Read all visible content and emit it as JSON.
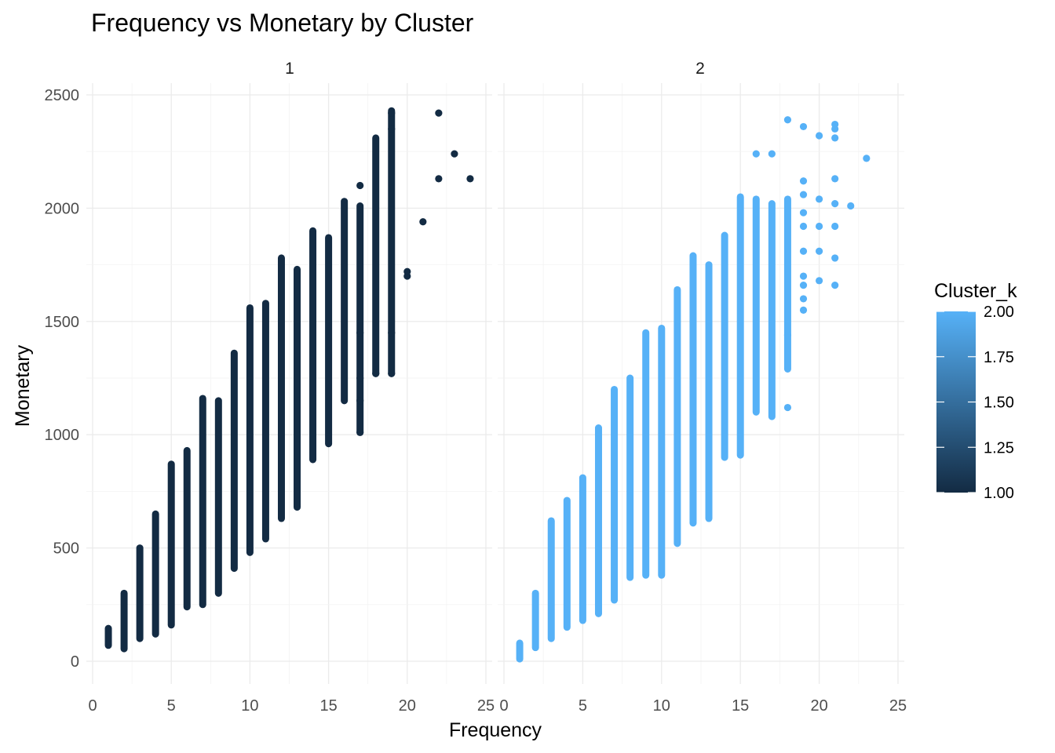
{
  "chart_data": {
    "type": "scatter",
    "title": "Frequency vs Monetary by Cluster",
    "xlabel": "Frequency",
    "ylabel": "Monetary",
    "xlim": [
      0,
      25
    ],
    "ylim": [
      0,
      2500
    ],
    "x_ticks": [
      0,
      5,
      10,
      15,
      20,
      25
    ],
    "y_ticks": [
      0,
      500,
      1000,
      1500,
      2000,
      2500
    ],
    "grid": true,
    "facet_by": "cluster",
    "legend": {
      "title": "Cluster_k",
      "type": "colorbar",
      "placement": "right",
      "range": [
        1.0,
        2.0
      ],
      "ticks": [
        "1.00",
        "1.25",
        "1.50",
        "1.75",
        "2.00"
      ],
      "low_color": "#132B43",
      "high_color": "#56B1F7"
    },
    "panels": [
      {
        "label": "1",
        "color": "#132B43",
        "columns": [
          {
            "x": 1,
            "min": 70,
            "max": 145
          },
          {
            "x": 2,
            "min": 55,
            "max": 300
          },
          {
            "x": 3,
            "min": 100,
            "max": 500
          },
          {
            "x": 4,
            "min": 120,
            "max": 650
          },
          {
            "x": 5,
            "min": 160,
            "max": 870
          },
          {
            "x": 6,
            "min": 240,
            "max": 930
          },
          {
            "x": 7,
            "min": 250,
            "max": 1160
          },
          {
            "x": 8,
            "min": 300,
            "max": 1150
          },
          {
            "x": 9,
            "min": 410,
            "max": 1360
          },
          {
            "x": 10,
            "min": 480,
            "max": 1560
          },
          {
            "x": 11,
            "min": 540,
            "max": 1580
          },
          {
            "x": 12,
            "min": 630,
            "max": 1780
          },
          {
            "x": 13,
            "min": 680,
            "max": 1730
          },
          {
            "x": 14,
            "min": 890,
            "max": 1900
          },
          {
            "x": 15,
            "min": 960,
            "max": 1870
          },
          {
            "x": 16,
            "min": 1150,
            "max": 2030
          },
          {
            "x": 17,
            "min": 1010,
            "max": 2010
          },
          {
            "x": 18,
            "min": 1270,
            "max": 2310
          },
          {
            "x": 19,
            "min": 1270,
            "max": 2430
          }
        ],
        "points": [
          {
            "x": 17,
            "y": 2100
          },
          {
            "x": 17,
            "y": 1450
          },
          {
            "x": 17,
            "y": 1250
          },
          {
            "x": 17,
            "y": 1150
          },
          {
            "x": 17,
            "y": 1010
          },
          {
            "x": 18,
            "y": 1270
          },
          {
            "x": 19,
            "y": 1270
          },
          {
            "x": 19,
            "y": 1450
          },
          {
            "x": 19,
            "y": 2350
          },
          {
            "x": 19,
            "y": 2420
          },
          {
            "x": 20,
            "y": 1700
          },
          {
            "x": 20,
            "y": 1720
          },
          {
            "x": 21,
            "y": 1940
          },
          {
            "x": 22,
            "y": 2420
          },
          {
            "x": 22,
            "y": 2130
          },
          {
            "x": 23,
            "y": 2240
          },
          {
            "x": 24,
            "y": 2130
          }
        ]
      },
      {
        "label": "2",
        "color": "#56B1F7",
        "columns": [
          {
            "x": 1,
            "min": 10,
            "max": 80
          },
          {
            "x": 2,
            "min": 60,
            "max": 300
          },
          {
            "x": 3,
            "min": 100,
            "max": 620
          },
          {
            "x": 4,
            "min": 150,
            "max": 710
          },
          {
            "x": 5,
            "min": 180,
            "max": 810
          },
          {
            "x": 6,
            "min": 210,
            "max": 1030
          },
          {
            "x": 7,
            "min": 270,
            "max": 1200
          },
          {
            "x": 8,
            "min": 370,
            "max": 1250
          },
          {
            "x": 9,
            "min": 380,
            "max": 1450
          },
          {
            "x": 10,
            "min": 380,
            "max": 1470
          },
          {
            "x": 11,
            "min": 520,
            "max": 1640
          },
          {
            "x": 12,
            "min": 610,
            "max": 1790
          },
          {
            "x": 13,
            "min": 630,
            "max": 1750
          },
          {
            "x": 14,
            "min": 900,
            "max": 1880
          },
          {
            "x": 15,
            "min": 910,
            "max": 2050
          },
          {
            "x": 16,
            "min": 1100,
            "max": 2040
          },
          {
            "x": 17,
            "min": 1080,
            "max": 2020
          },
          {
            "x": 18,
            "min": 1290,
            "max": 2040
          }
        ],
        "points": [
          {
            "x": 16,
            "y": 2240
          },
          {
            "x": 17,
            "y": 2240
          },
          {
            "x": 18,
            "y": 2390
          },
          {
            "x": 18,
            "y": 1120
          },
          {
            "x": 18,
            "y": 1440
          },
          {
            "x": 19,
            "y": 2360
          },
          {
            "x": 19,
            "y": 2120
          },
          {
            "x": 19,
            "y": 2060
          },
          {
            "x": 19,
            "y": 1980
          },
          {
            "x": 19,
            "y": 1920
          },
          {
            "x": 19,
            "y": 1810
          },
          {
            "x": 19,
            "y": 1700
          },
          {
            "x": 19,
            "y": 1660
          },
          {
            "x": 19,
            "y": 1600
          },
          {
            "x": 19,
            "y": 1550
          },
          {
            "x": 20,
            "y": 2320
          },
          {
            "x": 20,
            "y": 2040
          },
          {
            "x": 20,
            "y": 1920
          },
          {
            "x": 20,
            "y": 1810
          },
          {
            "x": 20,
            "y": 1680
          },
          {
            "x": 21,
            "y": 2370
          },
          {
            "x": 21,
            "y": 2350
          },
          {
            "x": 21,
            "y": 2310
          },
          {
            "x": 21,
            "y": 2130
          },
          {
            "x": 21,
            "y": 2020
          },
          {
            "x": 21,
            "y": 1920
          },
          {
            "x": 21,
            "y": 1780
          },
          {
            "x": 21,
            "y": 1660
          },
          {
            "x": 22,
            "y": 2010
          },
          {
            "x": 23,
            "y": 2220
          }
        ]
      }
    ]
  }
}
